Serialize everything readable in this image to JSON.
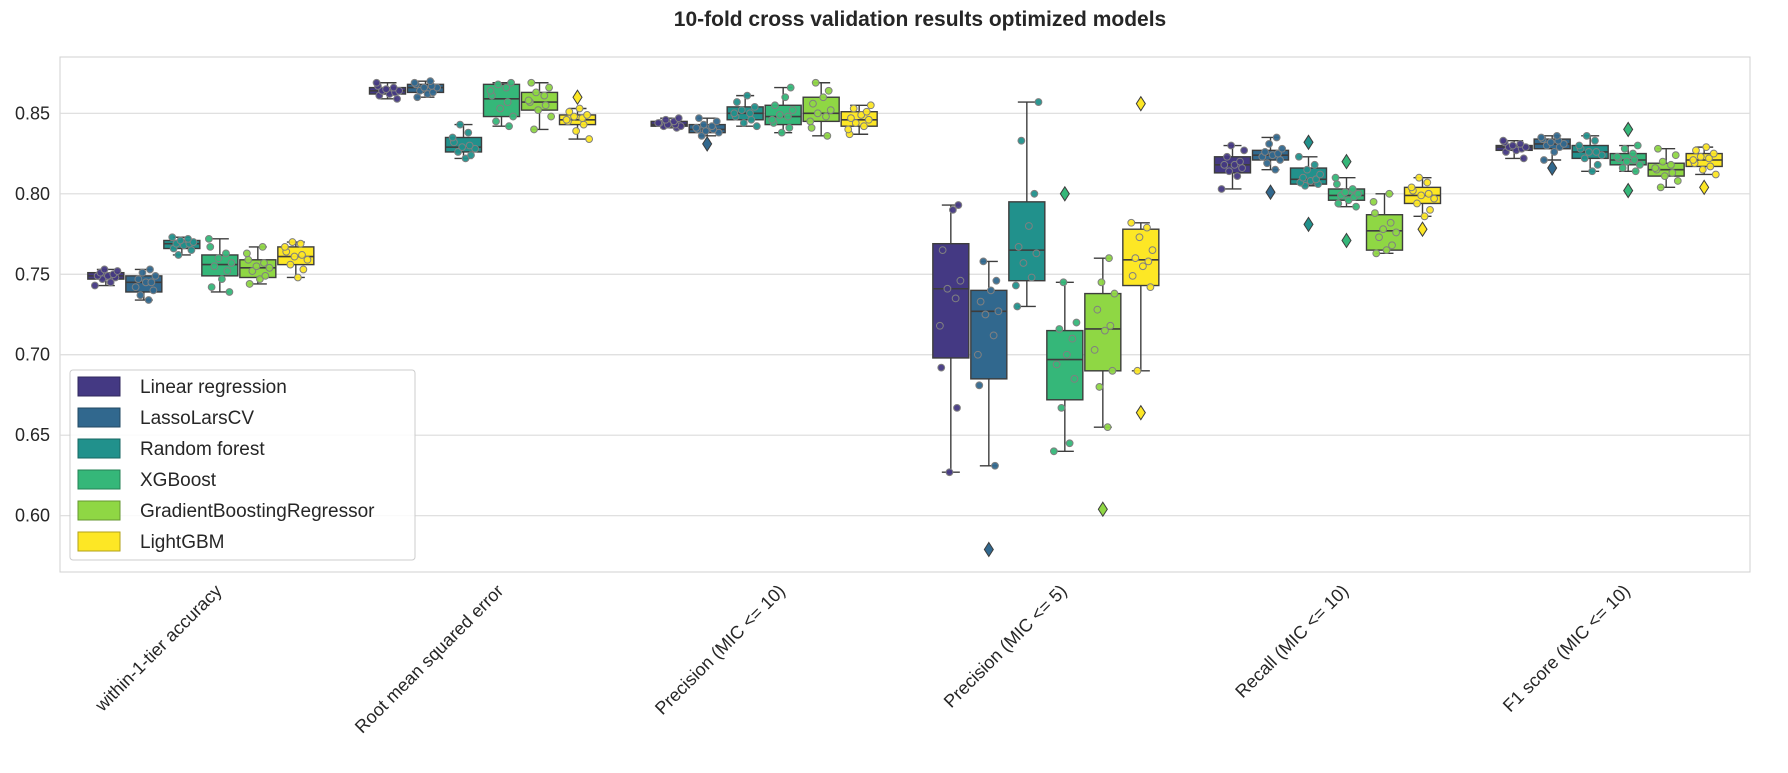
{
  "chart_data": {
    "type": "box",
    "title": "10-fold cross validation results optimized models",
    "xlabel": "",
    "ylabel": "",
    "ylim": [
      0.565,
      0.885
    ],
    "yticks": [
      0.6,
      0.65,
      0.7,
      0.75,
      0.8,
      0.85
    ],
    "ytick_labels": [
      "0.60",
      "0.65",
      "0.70",
      "0.75",
      "0.80",
      "0.85"
    ],
    "grid": true,
    "legend_position": "lower-left",
    "categories": [
      "within-1-tier accuracy",
      "Root mean squared error",
      "Precision (MIC <= 10)",
      "Precision (MIC <= 5)",
      "Recall (MIC <= 10)",
      "F1 score (MIC <= 10)"
    ],
    "series": [
      {
        "name": "Linear regression",
        "color": "#443983",
        "boxes": [
          {
            "q1": 0.747,
            "median": 0.749,
            "q3": 0.751,
            "whisker_low": 0.743,
            "whisker_high": 0.753,
            "outliers": [],
            "points": [
              0.743,
              0.745,
              0.747,
              0.748,
              0.749,
              0.749,
              0.75,
              0.751,
              0.752,
              0.753
            ]
          },
          {
            "q1": 0.862,
            "median": 0.864,
            "q3": 0.866,
            "whisker_low": 0.859,
            "whisker_high": 0.869,
            "outliers": [],
            "points": [
              0.859,
              0.861,
              0.862,
              0.863,
              0.864,
              0.864,
              0.865,
              0.866,
              0.867,
              0.869
            ]
          },
          {
            "q1": 0.842,
            "median": 0.843,
            "q3": 0.845,
            "whisker_low": 0.841,
            "whisker_high": 0.847,
            "outliers": [],
            "points": [
              0.841,
              0.842,
              0.842,
              0.843,
              0.843,
              0.844,
              0.844,
              0.845,
              0.846,
              0.847
            ]
          },
          {
            "q1": 0.698,
            "median": 0.741,
            "q3": 0.769,
            "whisker_low": 0.627,
            "whisker_high": 0.793,
            "outliers": [],
            "points": [
              0.627,
              0.667,
              0.692,
              0.718,
              0.735,
              0.741,
              0.746,
              0.765,
              0.79,
              0.793
            ]
          },
          {
            "q1": 0.813,
            "median": 0.818,
            "q3": 0.823,
            "whisker_low": 0.803,
            "whisker_high": 0.83,
            "outliers": [],
            "points": [
              0.803,
              0.811,
              0.814,
              0.816,
              0.818,
              0.818,
              0.82,
              0.823,
              0.827,
              0.83
            ]
          },
          {
            "q1": 0.827,
            "median": 0.829,
            "q3": 0.83,
            "whisker_low": 0.822,
            "whisker_high": 0.833,
            "outliers": [],
            "points": [
              0.822,
              0.826,
              0.827,
              0.828,
              0.829,
              0.829,
              0.83,
              0.831,
              0.832,
              0.833
            ]
          }
        ]
      },
      {
        "name": "LassoLarsCV",
        "color": "#31688e",
        "boxes": [
          {
            "q1": 0.739,
            "median": 0.745,
            "q3": 0.749,
            "whisker_low": 0.734,
            "whisker_high": 0.753,
            "outliers": [],
            "points": [
              0.734,
              0.737,
              0.74,
              0.742,
              0.745,
              0.745,
              0.747,
              0.749,
              0.751,
              0.753
            ]
          },
          {
            "q1": 0.863,
            "median": 0.866,
            "q3": 0.868,
            "whisker_low": 0.86,
            "whisker_high": 0.87,
            "outliers": [],
            "points": [
              0.86,
              0.862,
              0.863,
              0.864,
              0.866,
              0.866,
              0.867,
              0.868,
              0.869,
              0.87
            ]
          },
          {
            "q1": 0.838,
            "median": 0.84,
            "q3": 0.843,
            "whisker_low": 0.836,
            "whisker_high": 0.847,
            "outliers": [
              0.831
            ],
            "points": [
              0.836,
              0.838,
              0.839,
              0.84,
              0.84,
              0.841,
              0.842,
              0.843,
              0.845,
              0.847
            ]
          },
          {
            "q1": 0.685,
            "median": 0.727,
            "q3": 0.74,
            "whisker_low": 0.631,
            "whisker_high": 0.758,
            "outliers": [
              0.579
            ],
            "points": [
              0.631,
              0.681,
              0.7,
              0.712,
              0.725,
              0.727,
              0.733,
              0.74,
              0.746,
              0.758
            ]
          },
          {
            "q1": 0.821,
            "median": 0.824,
            "q3": 0.827,
            "whisker_low": 0.815,
            "whisker_high": 0.835,
            "outliers": [
              0.801
            ],
            "points": [
              0.815,
              0.819,
              0.821,
              0.823,
              0.824,
              0.825,
              0.826,
              0.828,
              0.831,
              0.835
            ]
          },
          {
            "q1": 0.828,
            "median": 0.831,
            "q3": 0.834,
            "whisker_low": 0.821,
            "whisker_high": 0.836,
            "outliers": [
              0.816
            ],
            "points": [
              0.821,
              0.826,
              0.829,
              0.83,
              0.831,
              0.832,
              0.833,
              0.834,
              0.835,
              0.836
            ]
          }
        ]
      },
      {
        "name": "Random forest",
        "color": "#21918c",
        "boxes": [
          {
            "q1": 0.766,
            "median": 0.769,
            "q3": 0.771,
            "whisker_low": 0.762,
            "whisker_high": 0.773,
            "outliers": [],
            "points": [
              0.762,
              0.765,
              0.766,
              0.768,
              0.769,
              0.769,
              0.77,
              0.771,
              0.772,
              0.773
            ]
          },
          {
            "q1": 0.826,
            "median": 0.829,
            "q3": 0.835,
            "whisker_low": 0.822,
            "whisker_high": 0.843,
            "outliers": [],
            "points": [
              0.822,
              0.824,
              0.826,
              0.828,
              0.829,
              0.83,
              0.832,
              0.835,
              0.838,
              0.843
            ]
          },
          {
            "q1": 0.846,
            "median": 0.85,
            "q3": 0.854,
            "whisker_low": 0.842,
            "whisker_high": 0.861,
            "outliers": [],
            "points": [
              0.842,
              0.844,
              0.846,
              0.848,
              0.85,
              0.85,
              0.852,
              0.854,
              0.857,
              0.861
            ]
          },
          {
            "q1": 0.746,
            "median": 0.765,
            "q3": 0.795,
            "whisker_low": 0.73,
            "whisker_high": 0.857,
            "outliers": [],
            "points": [
              0.73,
              0.743,
              0.748,
              0.757,
              0.763,
              0.767,
              0.78,
              0.8,
              0.833,
              0.857
            ]
          },
          {
            "q1": 0.806,
            "median": 0.809,
            "q3": 0.816,
            "whisker_low": 0.805,
            "whisker_high": 0.823,
            "outliers": [
              0.832,
              0.781
            ],
            "points": [
              0.805,
              0.806,
              0.807,
              0.808,
              0.809,
              0.81,
              0.812,
              0.815,
              0.818,
              0.823
            ]
          },
          {
            "q1": 0.822,
            "median": 0.826,
            "q3": 0.83,
            "whisker_low": 0.814,
            "whisker_high": 0.836,
            "outliers": [],
            "points": [
              0.814,
              0.818,
              0.822,
              0.824,
              0.826,
              0.826,
              0.828,
              0.83,
              0.833,
              0.836
            ]
          }
        ]
      },
      {
        "name": "XGBoost",
        "color": "#35b779",
        "boxes": [
          {
            "q1": 0.749,
            "median": 0.756,
            "q3": 0.762,
            "whisker_low": 0.739,
            "whisker_high": 0.772,
            "outliers": [],
            "points": [
              0.739,
              0.742,
              0.747,
              0.752,
              0.755,
              0.757,
              0.76,
              0.763,
              0.767,
              0.772
            ]
          },
          {
            "q1": 0.848,
            "median": 0.859,
            "q3": 0.868,
            "whisker_low": 0.842,
            "whisker_high": 0.869,
            "outliers": [],
            "points": [
              0.842,
              0.845,
              0.848,
              0.853,
              0.857,
              0.861,
              0.864,
              0.866,
              0.868,
              0.869
            ]
          },
          {
            "q1": 0.843,
            "median": 0.848,
            "q3": 0.855,
            "whisker_low": 0.838,
            "whisker_high": 0.866,
            "outliers": [],
            "points": [
              0.838,
              0.841,
              0.844,
              0.846,
              0.848,
              0.849,
              0.852,
              0.855,
              0.86,
              0.866
            ]
          },
          {
            "q1": 0.672,
            "median": 0.697,
            "q3": 0.715,
            "whisker_low": 0.64,
            "whisker_high": 0.745,
            "outliers": [
              0.8
            ],
            "points": [
              0.64,
              0.645,
              0.667,
              0.685,
              0.694,
              0.7,
              0.71,
              0.716,
              0.72,
              0.745
            ]
          },
          {
            "q1": 0.796,
            "median": 0.799,
            "q3": 0.803,
            "whisker_low": 0.792,
            "whisker_high": 0.81,
            "outliers": [
              0.82,
              0.771
            ],
            "points": [
              0.792,
              0.794,
              0.796,
              0.798,
              0.799,
              0.8,
              0.801,
              0.803,
              0.806,
              0.81
            ]
          },
          {
            "q1": 0.818,
            "median": 0.821,
            "q3": 0.825,
            "whisker_low": 0.814,
            "whisker_high": 0.83,
            "outliers": [
              0.84,
              0.802
            ],
            "points": [
              0.814,
              0.816,
              0.818,
              0.82,
              0.821,
              0.822,
              0.823,
              0.825,
              0.828,
              0.83
            ]
          }
        ]
      },
      {
        "name": "GradientBoostingRegressor",
        "color": "#8fd744",
        "boxes": [
          {
            "q1": 0.748,
            "median": 0.754,
            "q3": 0.759,
            "whisker_low": 0.744,
            "whisker_high": 0.767,
            "outliers": [],
            "points": [
              0.744,
              0.747,
              0.749,
              0.752,
              0.754,
              0.755,
              0.757,
              0.759,
              0.763,
              0.767
            ]
          },
          {
            "q1": 0.852,
            "median": 0.857,
            "q3": 0.863,
            "whisker_low": 0.84,
            "whisker_high": 0.869,
            "outliers": [],
            "points": [
              0.84,
              0.848,
              0.852,
              0.855,
              0.857,
              0.858,
              0.861,
              0.863,
              0.866,
              0.869
            ]
          },
          {
            "q1": 0.845,
            "median": 0.85,
            "q3": 0.86,
            "whisker_low": 0.836,
            "whisker_high": 0.869,
            "outliers": [],
            "points": [
              0.836,
              0.841,
              0.845,
              0.848,
              0.85,
              0.852,
              0.856,
              0.86,
              0.864,
              0.869
            ]
          },
          {
            "q1": 0.69,
            "median": 0.716,
            "q3": 0.738,
            "whisker_low": 0.655,
            "whisker_high": 0.76,
            "outliers": [
              0.604
            ],
            "points": [
              0.655,
              0.68,
              0.69,
              0.703,
              0.715,
              0.718,
              0.728,
              0.738,
              0.745,
              0.76
            ]
          },
          {
            "q1": 0.765,
            "median": 0.777,
            "q3": 0.787,
            "whisker_low": 0.763,
            "whisker_high": 0.8,
            "outliers": [],
            "points": [
              0.763,
              0.765,
              0.768,
              0.773,
              0.776,
              0.778,
              0.782,
              0.788,
              0.795,
              0.8
            ]
          },
          {
            "q1": 0.811,
            "median": 0.815,
            "q3": 0.819,
            "whisker_low": 0.804,
            "whisker_high": 0.828,
            "outliers": [],
            "points": [
              0.804,
              0.808,
              0.811,
              0.813,
              0.815,
              0.816,
              0.818,
              0.82,
              0.824,
              0.828
            ]
          }
        ]
      },
      {
        "name": "LightGBM",
        "color": "#fde725",
        "boxes": [
          {
            "q1": 0.756,
            "median": 0.761,
            "q3": 0.767,
            "whisker_low": 0.748,
            "whisker_high": 0.77,
            "outliers": [],
            "points": [
              0.748,
              0.753,
              0.756,
              0.759,
              0.761,
              0.762,
              0.764,
              0.767,
              0.769,
              0.77
            ]
          },
          {
            "q1": 0.843,
            "median": 0.846,
            "q3": 0.849,
            "whisker_low": 0.834,
            "whisker_high": 0.853,
            "outliers": [
              0.86
            ],
            "points": [
              0.834,
              0.839,
              0.843,
              0.845,
              0.846,
              0.847,
              0.848,
              0.849,
              0.851,
              0.853
            ]
          },
          {
            "q1": 0.842,
            "median": 0.846,
            "q3": 0.851,
            "whisker_low": 0.837,
            "whisker_high": 0.855,
            "outliers": [],
            "points": [
              0.837,
              0.84,
              0.842,
              0.844,
              0.846,
              0.847,
              0.849,
              0.851,
              0.853,
              0.855
            ]
          },
          {
            "q1": 0.743,
            "median": 0.759,
            "q3": 0.778,
            "whisker_low": 0.69,
            "whisker_high": 0.782,
            "outliers": [
              0.856,
              0.664
            ],
            "points": [
              0.69,
              0.742,
              0.749,
              0.755,
              0.758,
              0.76,
              0.765,
              0.773,
              0.779,
              0.782
            ]
          },
          {
            "q1": 0.794,
            "median": 0.799,
            "q3": 0.804,
            "whisker_low": 0.786,
            "whisker_high": 0.81,
            "outliers": [
              0.778
            ],
            "points": [
              0.786,
              0.79,
              0.794,
              0.797,
              0.799,
              0.8,
              0.802,
              0.804,
              0.807,
              0.81
            ]
          },
          {
            "q1": 0.817,
            "median": 0.821,
            "q3": 0.825,
            "whisker_low": 0.812,
            "whisker_high": 0.829,
            "outliers": [
              0.804
            ],
            "points": [
              0.812,
              0.815,
              0.817,
              0.819,
              0.821,
              0.822,
              0.823,
              0.825,
              0.827,
              0.829
            ]
          }
        ]
      }
    ]
  }
}
